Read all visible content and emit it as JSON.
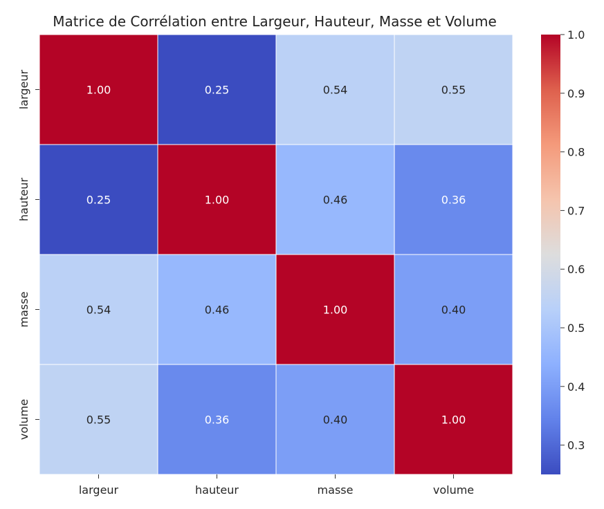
{
  "chart_data": {
    "type": "heatmap",
    "title": "Matrice de Corrélation entre Largeur, Hauteur, Masse et Volume",
    "xlabel": "",
    "ylabel": "",
    "row_labels": [
      "largeur",
      "hauteur",
      "masse",
      "volume"
    ],
    "col_labels": [
      "largeur",
      "hauteur",
      "masse",
      "volume"
    ],
    "values": [
      [
        1.0,
        0.25,
        0.54,
        0.55
      ],
      [
        0.25,
        1.0,
        0.46,
        0.36
      ],
      [
        0.54,
        0.46,
        1.0,
        0.4
      ],
      [
        0.55,
        0.36,
        0.4,
        1.0
      ]
    ],
    "cell_labels": [
      [
        "1.00",
        "0.25",
        "0.54",
        "0.55"
      ],
      [
        "0.25",
        "1.00",
        "0.46",
        "0.36"
      ],
      [
        "0.54",
        "0.46",
        "1.00",
        "0.40"
      ],
      [
        "0.55",
        "0.36",
        "0.40",
        "1.00"
      ]
    ],
    "colormap": "coolwarm",
    "vmin": 0.25,
    "vmax": 1.0,
    "colorbar_ticks": [
      "0.3",
      "0.4",
      "0.5",
      "0.6",
      "0.7",
      "0.8",
      "0.9",
      "1.0"
    ]
  }
}
